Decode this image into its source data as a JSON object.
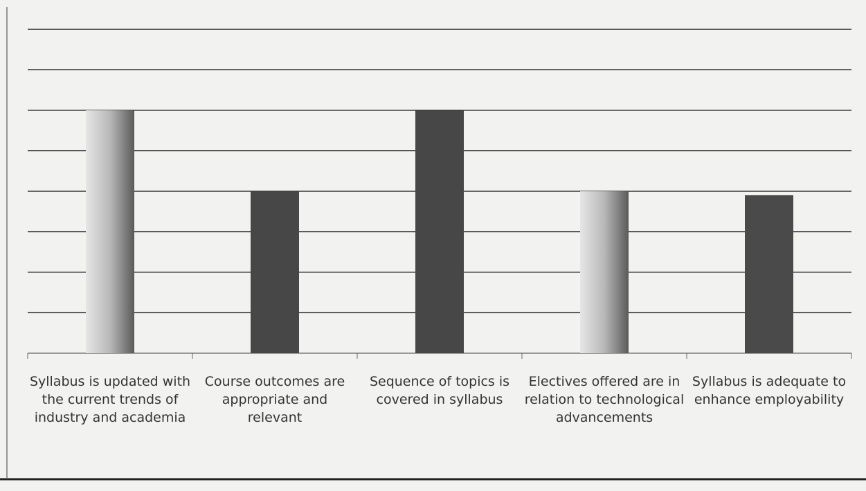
{
  "chart_data": {
    "type": "bar",
    "categories": [
      "Syllabus is updated with the current trends of industry and academia",
      "Course outcomes are appropriate and relevant",
      "Sequence of topics is covered in syllabus",
      "Electives offered are in relation to technological advancements",
      "Syllabus is adequate to enhance employability"
    ],
    "values": [
      6.0,
      4.0,
      6.0,
      4.0,
      3.9
    ],
    "colors": [
      "#a8a8a8",
      "#474747",
      "#474747",
      "#a8a8a8",
      "#4a4a4a"
    ],
    "ylim": [
      0,
      8.5
    ],
    "yticks": [
      0,
      1,
      2,
      3,
      4,
      5,
      6,
      7,
      8
    ],
    "grid": true
  }
}
